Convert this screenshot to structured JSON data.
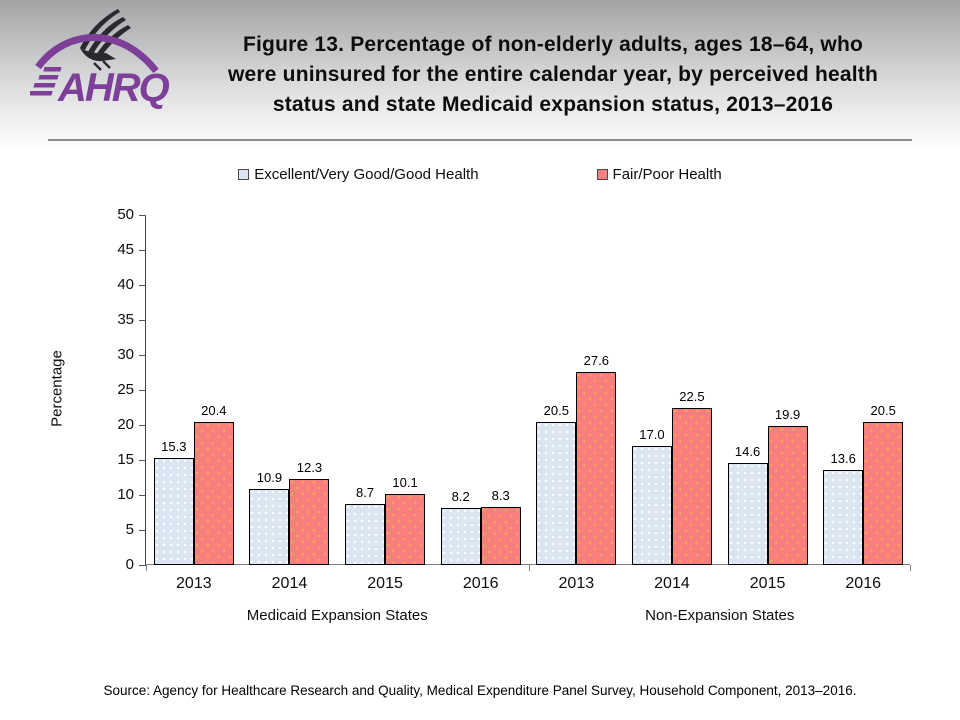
{
  "header": {
    "title_line1": "Figure 13. Percentage of non-elderly adults, ages 18–64, who",
    "title_line2": "were uninsured for the entire calendar year, by perceived health",
    "title_line3": "status and state Medicaid expansion status, 2013–2016",
    "logo_text": "AHRQ"
  },
  "legend": {
    "items": [
      {
        "label": "Excellent/Very Good/Good Health",
        "fill": "#dbe5f1",
        "border": "#4a4a4a"
      },
      {
        "label": "Fair/Poor Health",
        "fill": "#f97f7f",
        "border": "#963634"
      }
    ]
  },
  "chart_data": {
    "type": "bar",
    "title": "Percentage of non-elderly adults ages 18–64 uninsured for the entire calendar year, by perceived health status and state Medicaid expansion status, 2013–2016",
    "ylabel": "Percentage",
    "xlabel": "",
    "ylim": [
      0,
      50
    ],
    "ytick_step": 5,
    "grid": false,
    "legend_position": "top",
    "series_meta": [
      {
        "key": "excellent",
        "name": "Excellent/Very Good/Good Health",
        "fill": "#dbe5f1"
      },
      {
        "key": "fair",
        "name": "Fair/Poor Health",
        "fill": "#f97f7f"
      }
    ],
    "sections": [
      {
        "label": "Medicaid Expansion States",
        "categories": [
          "2013",
          "2014",
          "2015",
          "2016"
        ],
        "series": [
          {
            "name": "Excellent/Very Good/Good Health",
            "values": [
              15.3,
              10.9,
              8.7,
              8.2
            ],
            "labels": [
              "15.3",
              "10.9",
              "8.7",
              "8.2"
            ]
          },
          {
            "name": "Fair/Poor Health",
            "values": [
              20.4,
              12.3,
              10.1,
              8.3
            ],
            "labels": [
              "20.4",
              "12.3",
              "10.1",
              "8.3"
            ]
          }
        ]
      },
      {
        "label": "Non-Expansion States",
        "categories": [
          "2013",
          "2014",
          "2015",
          "2016"
        ],
        "series": [
          {
            "name": "Excellent/Very Good/Good Health",
            "values": [
              20.5,
              17.0,
              14.6,
              13.6
            ],
            "labels": [
              "20.5",
              "17.0",
              "14.6",
              "13.6"
            ]
          },
          {
            "name": "Fair/Poor Health",
            "values": [
              27.6,
              22.5,
              19.9,
              20.5
            ],
            "labels": [
              "27.6",
              "22.5",
              "19.9",
              "20.5"
            ]
          }
        ]
      }
    ]
  },
  "source": "Source: Agency for Healthcare Research and Quality, Medical Expenditure Panel Survey, Household Component, 2013–2016."
}
